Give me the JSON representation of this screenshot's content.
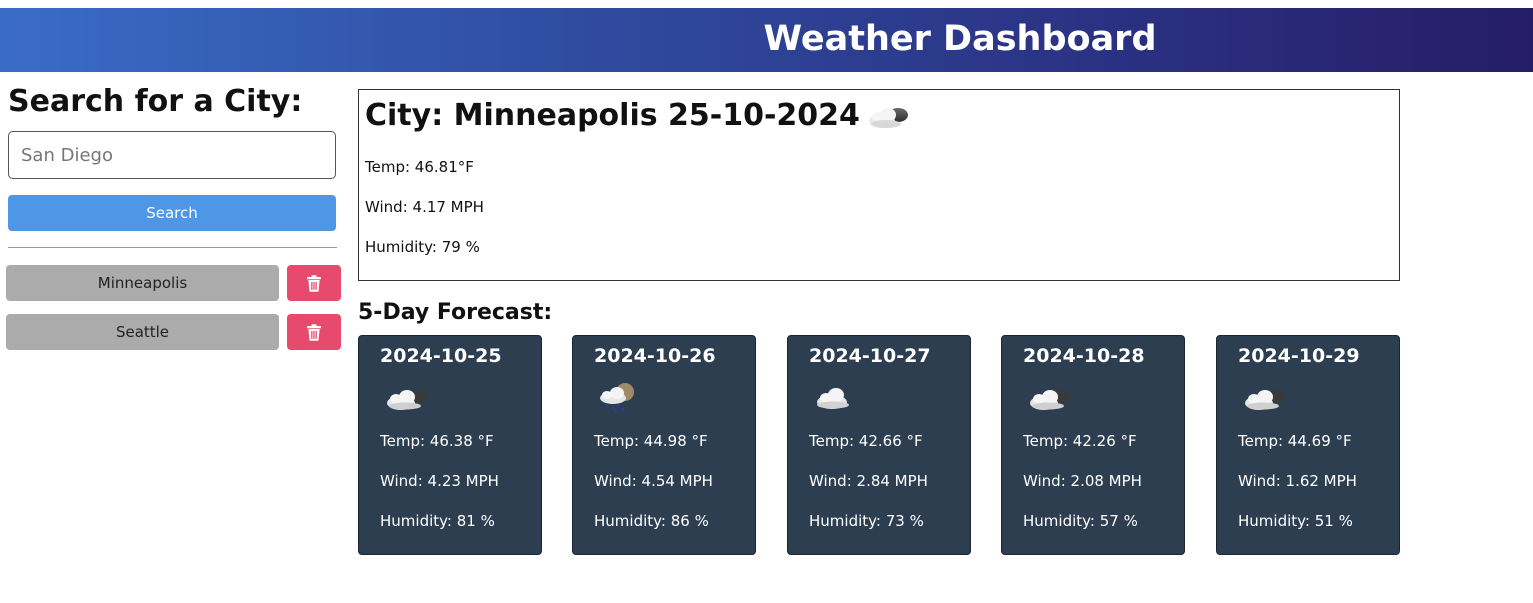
{
  "header": {
    "title": "Weather Dashboard"
  },
  "search": {
    "heading": "Search for a City:",
    "input_value": "",
    "placeholder": "San Diego",
    "button_label": "Search"
  },
  "history": [
    {
      "city": "Minneapolis"
    },
    {
      "city": "Seattle"
    }
  ],
  "icons": {
    "delete": "trash-icon"
  },
  "colors": {
    "search_button": "#4e97e6",
    "history_button": "#ababab",
    "delete_button": "#e74a6c",
    "forecast_card": "#2c3e50"
  },
  "current": {
    "title": "City: Minneapolis 25-10-2024",
    "icon": "partly-cloudy-icon",
    "temp": "Temp: 46.81°F",
    "wind": "Wind: 4.17 MPH",
    "humidity": "Humidity: 79 %"
  },
  "forecast": {
    "heading": "5-Day Forecast:",
    "days": [
      {
        "date": "2024-10-25",
        "icon": "partly-cloudy-icon",
        "temp": "Temp: 46.38 °F",
        "wind": "Wind: 4.23 MPH",
        "humidity": "Humidity: 81 %"
      },
      {
        "date": "2024-10-26",
        "icon": "rain-icon",
        "temp": "Temp: 44.98 °F",
        "wind": "Wind: 4.54 MPH",
        "humidity": "Humidity: 86 %"
      },
      {
        "date": "2024-10-27",
        "icon": "cloud-icon",
        "temp": "Temp: 42.66 °F",
        "wind": "Wind: 2.84 MPH",
        "humidity": "Humidity: 73 %"
      },
      {
        "date": "2024-10-28",
        "icon": "partly-cloudy-icon",
        "temp": "Temp: 42.26 °F",
        "wind": "Wind: 2.08 MPH",
        "humidity": "Humidity: 57 %"
      },
      {
        "date": "2024-10-29",
        "icon": "partly-cloudy-icon",
        "temp": "Temp: 44.69 °F",
        "wind": "Wind: 1.62 MPH",
        "humidity": "Humidity: 51 %"
      }
    ]
  }
}
